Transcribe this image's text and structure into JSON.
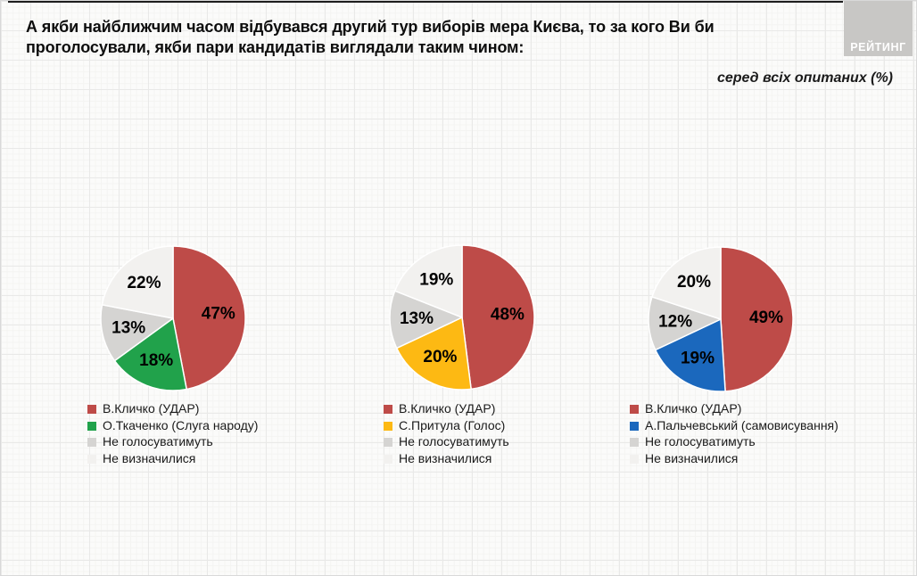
{
  "header": {
    "title": "А якби найближчим часом відбувався другий тур виборів мера Києва, то за кого Ви би проголосували, якби пари кандидатів виглядали таким чином:",
    "subtitle": "серед всіх опитаних (%)",
    "logo": "РЕЙТИНГ"
  },
  "chart_data": [
    {
      "type": "pie",
      "categories": [
        "В.Кличко (УДАР)",
        "О.Ткаченко (Слуга народу)",
        "Не голосуватимуть",
        "Не визначилися"
      ],
      "values": [
        47,
        18,
        13,
        22
      ],
      "colors": [
        "#BE4B48",
        "#21A24B",
        "#D5D4D2",
        "#F2F1EF"
      ],
      "value_suffix": "%",
      "start_angle": 0,
      "direction": "clockwise",
      "labels": "percent-inside",
      "legend_position": "bottom-left"
    },
    {
      "type": "pie",
      "categories": [
        "В.Кличко (УДАР)",
        "С.Притула (Голос)",
        "Не голосуватимуть",
        "Не визначилися"
      ],
      "values": [
        48,
        20,
        13,
        19
      ],
      "colors": [
        "#BE4B48",
        "#FDB913",
        "#D5D4D2",
        "#F2F1EF"
      ],
      "value_suffix": "%",
      "start_angle": 0,
      "direction": "clockwise",
      "labels": "percent-inside",
      "legend_position": "bottom-left"
    },
    {
      "type": "pie",
      "categories": [
        "В.Кличко (УДАР)",
        "А.Пальчевський (самовисування)",
        "Не голосуватимуть",
        "Не визначилися"
      ],
      "values": [
        49,
        19,
        12,
        20
      ],
      "colors": [
        "#BE4B48",
        "#1B68BD",
        "#D5D4D2",
        "#F2F1EF"
      ],
      "value_suffix": "%",
      "start_angle": 0,
      "direction": "clockwise",
      "labels": "percent-inside",
      "legend_position": "bottom-left"
    }
  ]
}
